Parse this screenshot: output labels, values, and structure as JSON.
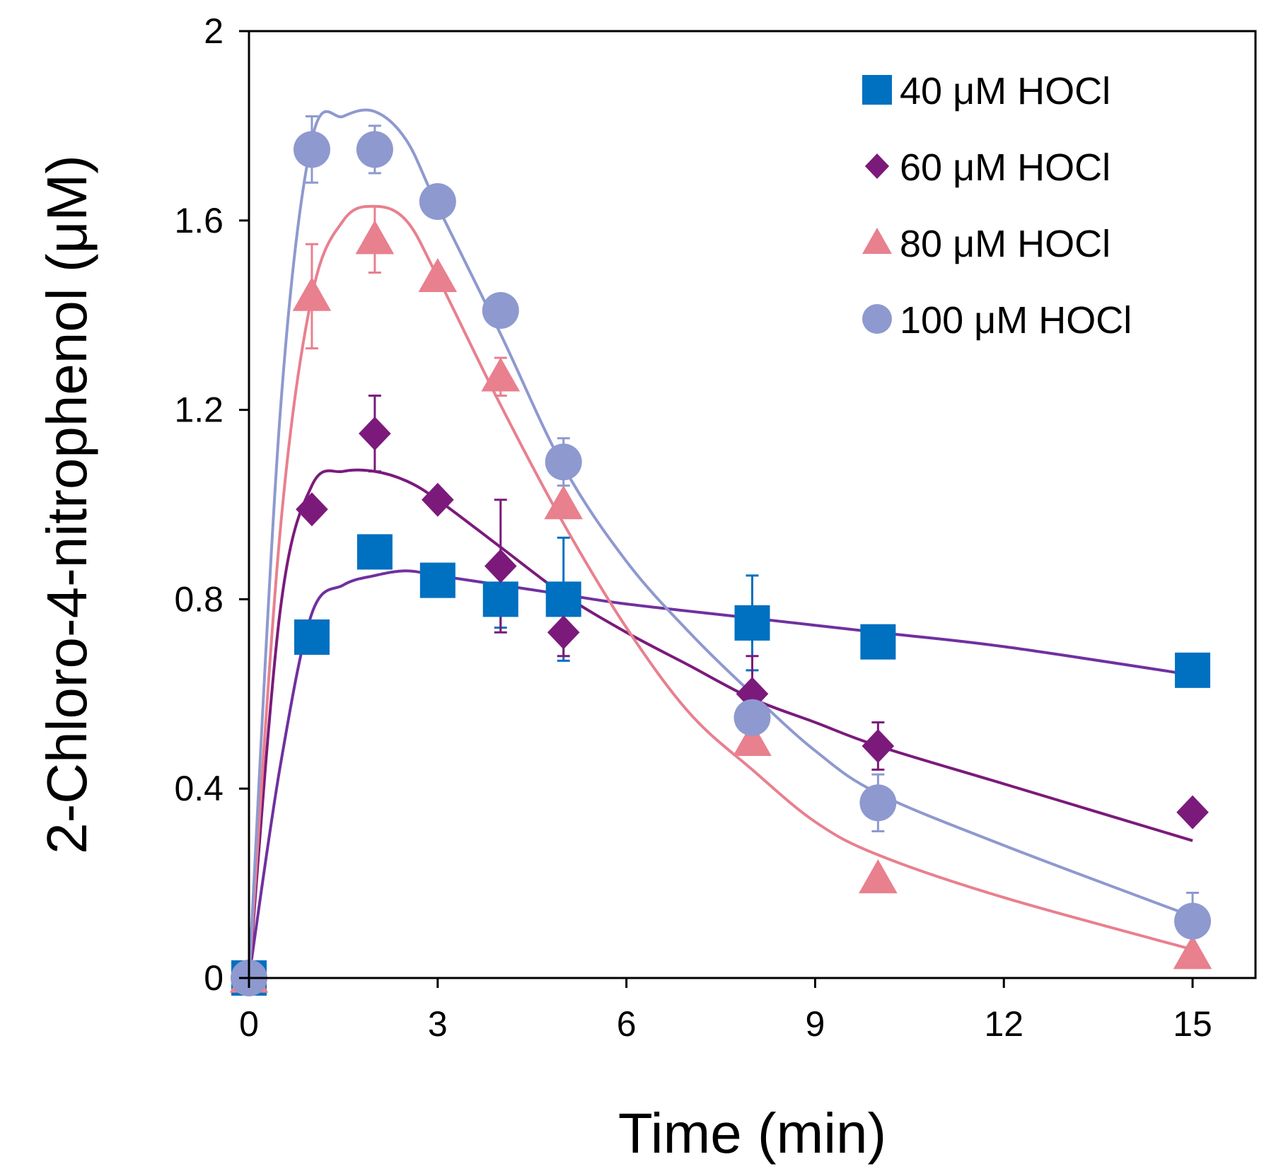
{
  "chart_data": {
    "type": "scatter",
    "xlabel": "Time (min)",
    "ylabel": "2-Chloro-4-nitrophenol (μM)",
    "xlim": [
      0,
      16
    ],
    "ylim": [
      0,
      2
    ],
    "xticks": [
      0,
      3,
      6,
      9,
      12,
      15
    ],
    "yticks": [
      0,
      0.4,
      0.8,
      1.2,
      1.6,
      2
    ],
    "xtick_labels": [
      "0",
      "3",
      "6",
      "9",
      "12",
      "15"
    ],
    "ytick_labels": [
      "0",
      "0.4",
      "0.8",
      "1.2",
      "1.6",
      "2"
    ],
    "legend_position": "top-right",
    "series": [
      {
        "name": "40 μM HOCl",
        "marker": "square",
        "marker_color": "#0070C0",
        "line_color": "#7030A0",
        "x": [
          0,
          1,
          2,
          3,
          4,
          5,
          8,
          10,
          15
        ],
        "y": [
          0,
          0.72,
          0.9,
          0.84,
          0.8,
          0.8,
          0.75,
          0.71,
          0.65
        ],
        "err": [
          0,
          0,
          0,
          0,
          0.06,
          0.13,
          0.1,
          0,
          0
        ],
        "fit_x": [
          0,
          0.5,
          1,
          1.5,
          2,
          2.5,
          3,
          4,
          5,
          6,
          8,
          10,
          12,
          15
        ],
        "fit_y": [
          0,
          0.45,
          0.77,
          0.83,
          0.85,
          0.86,
          0.85,
          0.83,
          0.81,
          0.79,
          0.76,
          0.73,
          0.7,
          0.64
        ]
      },
      {
        "name": "60 μM HOCl",
        "marker": "diamond",
        "marker_color": "#7B1A7B",
        "line_color": "#7B1A7B",
        "x": [
          0,
          1,
          2,
          3,
          4,
          5,
          8,
          10,
          15
        ],
        "y": [
          0,
          0.99,
          1.15,
          1.01,
          0.87,
          0.73,
          0.6,
          0.49,
          0.35
        ],
        "err": [
          0,
          0,
          0.08,
          0,
          0.14,
          0.05,
          0.08,
          0.05,
          0.02
        ],
        "fit_x": [
          0,
          0.5,
          1,
          1.5,
          2,
          2.5,
          3,
          4,
          5,
          6,
          7,
          8,
          9,
          10,
          12,
          15
        ],
        "fit_y": [
          0,
          0.78,
          1.04,
          1.07,
          1.07,
          1.05,
          1.01,
          0.91,
          0.81,
          0.73,
          0.66,
          0.59,
          0.54,
          0.49,
          0.41,
          0.29
        ]
      },
      {
        "name": "80 μM HOCl",
        "marker": "triangle",
        "marker_color": "#E8808E",
        "line_color": "#E8808E",
        "x": [
          0,
          1,
          2,
          3,
          4,
          5,
          8,
          10,
          15
        ],
        "y": [
          0,
          1.44,
          1.56,
          1.48,
          1.27,
          1.0,
          0.5,
          0.21,
          0.05
        ],
        "err": [
          0,
          0.11,
          0.07,
          0,
          0.04,
          0,
          0,
          0,
          0
        ],
        "fit_x": [
          0,
          0.5,
          1,
          1.5,
          2,
          2.5,
          3,
          4,
          5,
          6,
          7,
          8,
          9,
          10,
          12,
          15
        ],
        "fit_y": [
          0,
          0.95,
          1.44,
          1.6,
          1.63,
          1.6,
          1.48,
          1.21,
          0.96,
          0.74,
          0.56,
          0.44,
          0.33,
          0.26,
          0.17,
          0.06
        ]
      },
      {
        "name": "100 μM HOCl",
        "marker": "circle",
        "marker_color": "#8E99CF",
        "line_color": "#8E99CF",
        "x": [
          0,
          1,
          2,
          3,
          4,
          5,
          8,
          10,
          15
        ],
        "y": [
          0,
          1.75,
          1.75,
          1.64,
          1.41,
          1.09,
          0.55,
          0.37,
          0.12
        ],
        "err": [
          0,
          0.07,
          0.05,
          0,
          0,
          0.05,
          0,
          0.06,
          0.06
        ],
        "fit_x": [
          0,
          0.5,
          1,
          1.5,
          2,
          2.5,
          3,
          4,
          5,
          6,
          7,
          8,
          9,
          10,
          12,
          15
        ],
        "fit_y": [
          0,
          1.2,
          1.77,
          1.82,
          1.83,
          1.77,
          1.63,
          1.36,
          1.08,
          0.88,
          0.73,
          0.6,
          0.48,
          0.39,
          0.28,
          0.13
        ]
      }
    ]
  }
}
